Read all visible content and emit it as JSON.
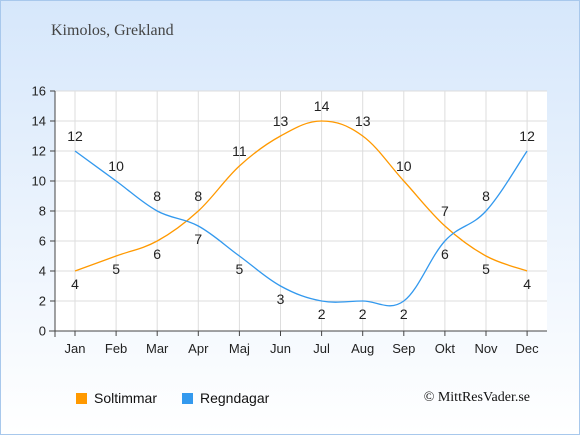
{
  "place_title": "Kimolos, Grekland",
  "credit": "© MittResVader.se",
  "chart_data": {
    "type": "line",
    "categories": [
      "Jan",
      "Feb",
      "Mar",
      "Apr",
      "Maj",
      "Jun",
      "Jul",
      "Aug",
      "Sep",
      "Okt",
      "Nov",
      "Dec"
    ],
    "ylim": [
      0,
      16
    ],
    "yticks": [
      0,
      2,
      4,
      6,
      8,
      10,
      12,
      14,
      16
    ],
    "series": [
      {
        "name": "Soltimmar",
        "color": "#ff9900",
        "values": [
          4,
          5,
          6,
          8,
          11,
          13,
          14,
          13,
          10,
          7,
          5,
          4
        ]
      },
      {
        "name": "Regndagar",
        "color": "#3399ee",
        "values": [
          12,
          10,
          8,
          7,
          5,
          3,
          2,
          2,
          2,
          6,
          8,
          12
        ]
      }
    ],
    "legend_position": "bottom-left"
  }
}
